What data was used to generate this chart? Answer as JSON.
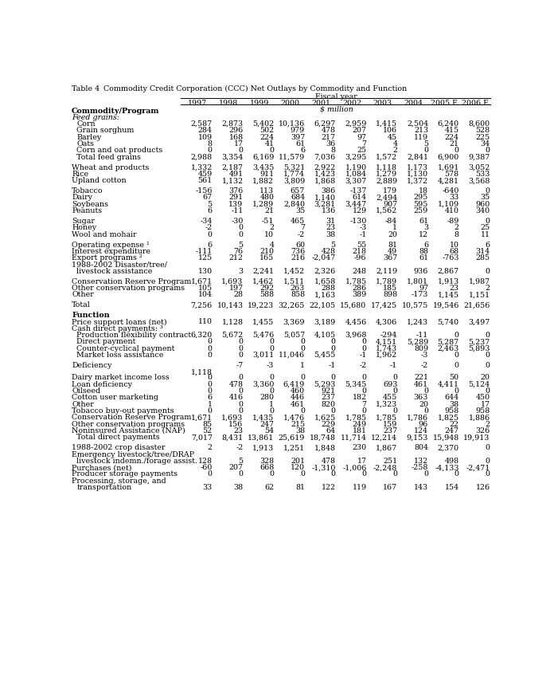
{
  "title_table": "Table 4",
  "title_desc": "Commodity Credit Corporation (CCC) Net Outlays by Commodity and Function",
  "col_headers": [
    "1997",
    "1998",
    "1999",
    "2000",
    "2001",
    "2002",
    "2003",
    "2004",
    "2005 E",
    "2006 E"
  ],
  "subheader": "$ million",
  "fiscal_year_label": "Fiscal year",
  "rows": [
    {
      "label": "Commodity/Program",
      "indent": 0,
      "bold": true,
      "values": null
    },
    {
      "label": "Feed grains:",
      "indent": 0,
      "italic": true,
      "values": null
    },
    {
      "label": "Corn",
      "indent": 1,
      "values": [
        "2,587",
        "2,873",
        "5,402",
        "10,136",
        "6,297",
        "2,959",
        "1,415",
        "2,504",
        "6,240",
        "8,600"
      ]
    },
    {
      "label": "Grain sorghum",
      "indent": 1,
      "values": [
        "284",
        "296",
        "502",
        "979",
        "478",
        "207",
        "106",
        "213",
        "415",
        "528"
      ]
    },
    {
      "label": "Barley",
      "indent": 1,
      "values": [
        "109",
        "168",
        "224",
        "397",
        "217",
        "97",
        "45",
        "119",
        "224",
        "225"
      ]
    },
    {
      "label": "Oats",
      "indent": 1,
      "values": [
        "8",
        "17",
        "41",
        "61",
        "36",
        "7",
        "4",
        "5",
        "21",
        "34"
      ]
    },
    {
      "label": "Corn and oat products",
      "indent": 1,
      "values": [
        "0",
        "0",
        "0",
        "6",
        "8",
        "25",
        "2",
        "0",
        "0",
        "0"
      ]
    },
    {
      "label": "Total feed grains",
      "indent": 1,
      "values": [
        "2,988",
        "3,354",
        "6,169",
        "11,579",
        "7,036",
        "3,295",
        "1,572",
        "2,841",
        "6,900",
        "9,387"
      ]
    },
    {
      "label": "",
      "spacer": true
    },
    {
      "label": "Wheat and products",
      "indent": 0,
      "values": [
        "1,332",
        "2,187",
        "3,435",
        "5,321",
        "2,922",
        "1,190",
        "1,118",
        "1,173",
        "1,691",
        "3,052"
      ]
    },
    {
      "label": "Rice",
      "indent": 0,
      "values": [
        "459",
        "491",
        "911",
        "1,774",
        "1,423",
        "1,084",
        "1,279",
        "1,130",
        "578",
        "533"
      ]
    },
    {
      "label": "Upland cotton",
      "indent": 0,
      "values": [
        "561",
        "1,132",
        "1,882",
        "3,809",
        "1,868",
        "3,307",
        "2,889",
        "1,372",
        "4,281",
        "3,568"
      ]
    },
    {
      "label": "",
      "spacer": true
    },
    {
      "label": "Tobacco",
      "indent": 0,
      "values": [
        "-156",
        "376",
        "113",
        "657",
        "386",
        "-137",
        "179",
        "18",
        "-640",
        "0"
      ]
    },
    {
      "label": "Dairy",
      "indent": 0,
      "values": [
        "67",
        "291",
        "480",
        "684",
        "1,140",
        "614",
        "2,494",
        "295",
        "33",
        "35"
      ]
    },
    {
      "label": "Soybeans",
      "indent": 0,
      "values": [
        "5",
        "139",
        "1,289",
        "2,840",
        "3,281",
        "3,447",
        "907",
        "595",
        "1,109",
        "960"
      ]
    },
    {
      "label": "Peanuts",
      "indent": 0,
      "values": [
        "6",
        "-11",
        "21",
        "35",
        "136",
        "129",
        "1,562",
        "259",
        "410",
        "340"
      ]
    },
    {
      "label": "",
      "spacer": true
    },
    {
      "label": "Sugar",
      "indent": 0,
      "values": [
        "-34",
        "-30",
        "-51",
        "465",
        "31",
        "-130",
        "-84",
        "61",
        "-89",
        "0"
      ]
    },
    {
      "label": "Honey",
      "indent": 0,
      "values": [
        "-2",
        "0",
        "2",
        "7",
        "23",
        "-3",
        "1",
        "3",
        "2",
        "25"
      ]
    },
    {
      "label": "Wool and mohair",
      "indent": 0,
      "values": [
        "0",
        "0",
        "10",
        "-2",
        "38",
        "-1",
        "20",
        "12",
        "8",
        "11"
      ]
    },
    {
      "label": "",
      "spacer": true
    },
    {
      "label": "Operating expense ¹",
      "indent": 0,
      "values": [
        "6",
        "5",
        "4",
        "60",
        "5",
        "55",
        "81",
        "6",
        "10",
        "6"
      ]
    },
    {
      "label": "Interest expenditure",
      "indent": 0,
      "values": [
        "-111",
        "76",
        "210",
        "736",
        "428",
        "218",
        "49",
        "88",
        "68",
        "314"
      ]
    },
    {
      "label": "Export programs ²",
      "indent": 0,
      "values": [
        "125",
        "212",
        "165",
        "216",
        "-2,047",
        "-96",
        "367",
        "61",
        "-763",
        "285"
      ]
    },
    {
      "label": "1988-2002 Disaster/tree/",
      "indent": 0,
      "values": null,
      "multiline_top": true
    },
    {
      "label": "livestock assistance",
      "indent": 1,
      "values": [
        "130",
        "3",
        "2,241",
        "1,452",
        "2,326",
        "248",
        "2,119",
        "936",
        "2,867",
        "0"
      ],
      "multiline_bot": true
    },
    {
      "label": "",
      "spacer": true
    },
    {
      "label": "Conservation Reserve Program",
      "indent": 0,
      "values": [
        "1,671",
        "1,693",
        "1,462",
        "1,511",
        "1,658",
        "1,785",
        "1,789",
        "1,801",
        "1,913",
        "1,987"
      ]
    },
    {
      "label": "Other conservation programs",
      "indent": 0,
      "values": [
        "105",
        "197",
        "292",
        "263",
        "288",
        "286",
        "185",
        "97",
        "23",
        "2"
      ]
    },
    {
      "label": "Other",
      "indent": 0,
      "values": [
        "104",
        "28",
        "588",
        "858",
        "1,163",
        "389",
        "898",
        "-173",
        "1,145",
        "1,151"
      ]
    },
    {
      "label": "",
      "spacer": true
    },
    {
      "label": "Total",
      "indent": 0,
      "values": [
        "7,256",
        "10,143",
        "19,223",
        "32,265",
        "22,105",
        "15,680",
        "17,425",
        "10,575",
        "19,546",
        "21,656"
      ]
    },
    {
      "label": "",
      "spacer": true
    },
    {
      "label": "Function",
      "indent": 0,
      "bold": true,
      "values": null
    },
    {
      "label": "Price support loans (net)",
      "indent": 0,
      "values": [
        "110",
        "1,128",
        "1,455",
        "3,369",
        "3,189",
        "4,456",
        "4,306",
        "1,243",
        "5,740",
        "3,497"
      ]
    },
    {
      "label": "Cash direct payments: ³",
      "indent": 0,
      "values": null
    },
    {
      "label": "Production flexibility contract",
      "indent": 1,
      "values": [
        "6,320",
        "5,672",
        "5,476",
        "5,057",
        "4,105",
        "3,968",
        "-294",
        "-11",
        "0",
        "0"
      ]
    },
    {
      "label": "Direct payment",
      "indent": 1,
      "values": [
        "0",
        "0",
        "0",
        "0",
        "0",
        "0",
        "4,151",
        "5,289",
        "5,287",
        "5,237"
      ]
    },
    {
      "label": "Counter-cyclical payment",
      "indent": 1,
      "values": [
        "0",
        "0",
        "0",
        "0",
        "0",
        "0",
        "1,743",
        "809",
        "2,463",
        "5,893"
      ]
    },
    {
      "label": "Market loss assistance",
      "indent": 1,
      "values": [
        "0",
        "0",
        "3,011",
        "11,046",
        "5,455",
        "-1",
        "1,962",
        "-3",
        "0",
        "0"
      ]
    },
    {
      "label": "",
      "spacer": true
    },
    {
      "label": "Deficiency",
      "indent": 0,
      "deficiency": true,
      "def_val": "1,118",
      "values": [
        "",
        "-7",
        "-3",
        "1",
        "-1",
        "-2",
        "-1",
        "-2",
        "0",
        "0"
      ]
    },
    {
      "label": "",
      "spacer": true
    },
    {
      "label": "Dairy market income loss",
      "indent": 0,
      "values": [
        "0",
        "0",
        "0",
        "0",
        "0",
        "0",
        "0",
        "221",
        "50",
        "20"
      ]
    },
    {
      "label": "Loan deficiency",
      "indent": 0,
      "values": [
        "0",
        "478",
        "3,360",
        "6,419",
        "5,293",
        "5,345",
        "693",
        "461",
        "4,411",
        "5,124"
      ]
    },
    {
      "label": "Oilseed",
      "indent": 0,
      "values": [
        "0",
        "0",
        "0",
        "460",
        "921",
        "0",
        "0",
        "0",
        "0",
        "0"
      ]
    },
    {
      "label": "Cotton user marketing",
      "indent": 0,
      "values": [
        "6",
        "416",
        "280",
        "446",
        "237",
        "182",
        "455",
        "363",
        "644",
        "450"
      ]
    },
    {
      "label": "Other",
      "indent": 0,
      "values": [
        "1",
        "0",
        "1",
        "461",
        "820",
        "7",
        "1,323",
        "20",
        "38",
        "17"
      ]
    },
    {
      "label": "Tobacco buy-out payments",
      "indent": 0,
      "values": [
        "0",
        "0",
        "0",
        "0",
        "0",
        "0",
        "0",
        "0",
        "958",
        "958"
      ]
    },
    {
      "label": "Conservation Reserve Program",
      "indent": 0,
      "values": [
        "1,671",
        "1,693",
        "1,435",
        "1,476",
        "1,625",
        "1,785",
        "1,785",
        "1,786",
        "1,825",
        "1,886"
      ]
    },
    {
      "label": "Other conservation programs",
      "indent": 0,
      "values": [
        "85",
        "156",
        "247",
        "215",
        "229",
        "249",
        "159",
        "96",
        "22",
        "2"
      ]
    },
    {
      "label": "Noninsured Assistance (NAP)",
      "indent": 0,
      "values": [
        "52",
        "23",
        "54",
        "38",
        "64",
        "181",
        "237",
        "124",
        "247",
        "326"
      ]
    },
    {
      "label": "Total direct payments",
      "indent": 1,
      "values": [
        "7,017",
        "8,431",
        "13,861",
        "25,619",
        "18,748",
        "11,714",
        "12,214",
        "9,153",
        "15,948",
        "19,913"
      ]
    },
    {
      "label": "",
      "spacer": true
    },
    {
      "label": "1988-2002 crop disaster",
      "indent": 0,
      "values": [
        "2",
        "-2",
        "1,913",
        "1,251",
        "1,848",
        "230",
        "1,867",
        "804",
        "2,370",
        "0"
      ]
    },
    {
      "label": "Emergency livestock/tree/DRAP",
      "indent": 0,
      "values": null,
      "multiline_top": true
    },
    {
      "label": "livestock indemn./forage assist.",
      "indent": 1,
      "values": [
        "128",
        "5",
        "328",
        "201",
        "478",
        "17",
        "251",
        "132",
        "498",
        "0"
      ],
      "multiline_bot": true
    },
    {
      "label": "Purchases (net)",
      "indent": 0,
      "values": [
        "-60",
        "207",
        "668",
        "120",
        "-1,310",
        "-1,006",
        "-2,248",
        "-258",
        "-4,133",
        "-2,471"
      ]
    },
    {
      "label": "Producer storage payments",
      "indent": 0,
      "values": [
        "0",
        "0",
        "0",
        "0",
        "0",
        "0",
        "0",
        "0",
        "0",
        "0"
      ]
    },
    {
      "label": "Processing, storage, and",
      "indent": 0,
      "values": null,
      "multiline_top": true
    },
    {
      "label": "transportation",
      "indent": 1,
      "values": [
        "33",
        "38",
        "62",
        "81",
        "122",
        "119",
        "167",
        "143",
        "154",
        "126"
      ],
      "multiline_bot": true
    }
  ]
}
